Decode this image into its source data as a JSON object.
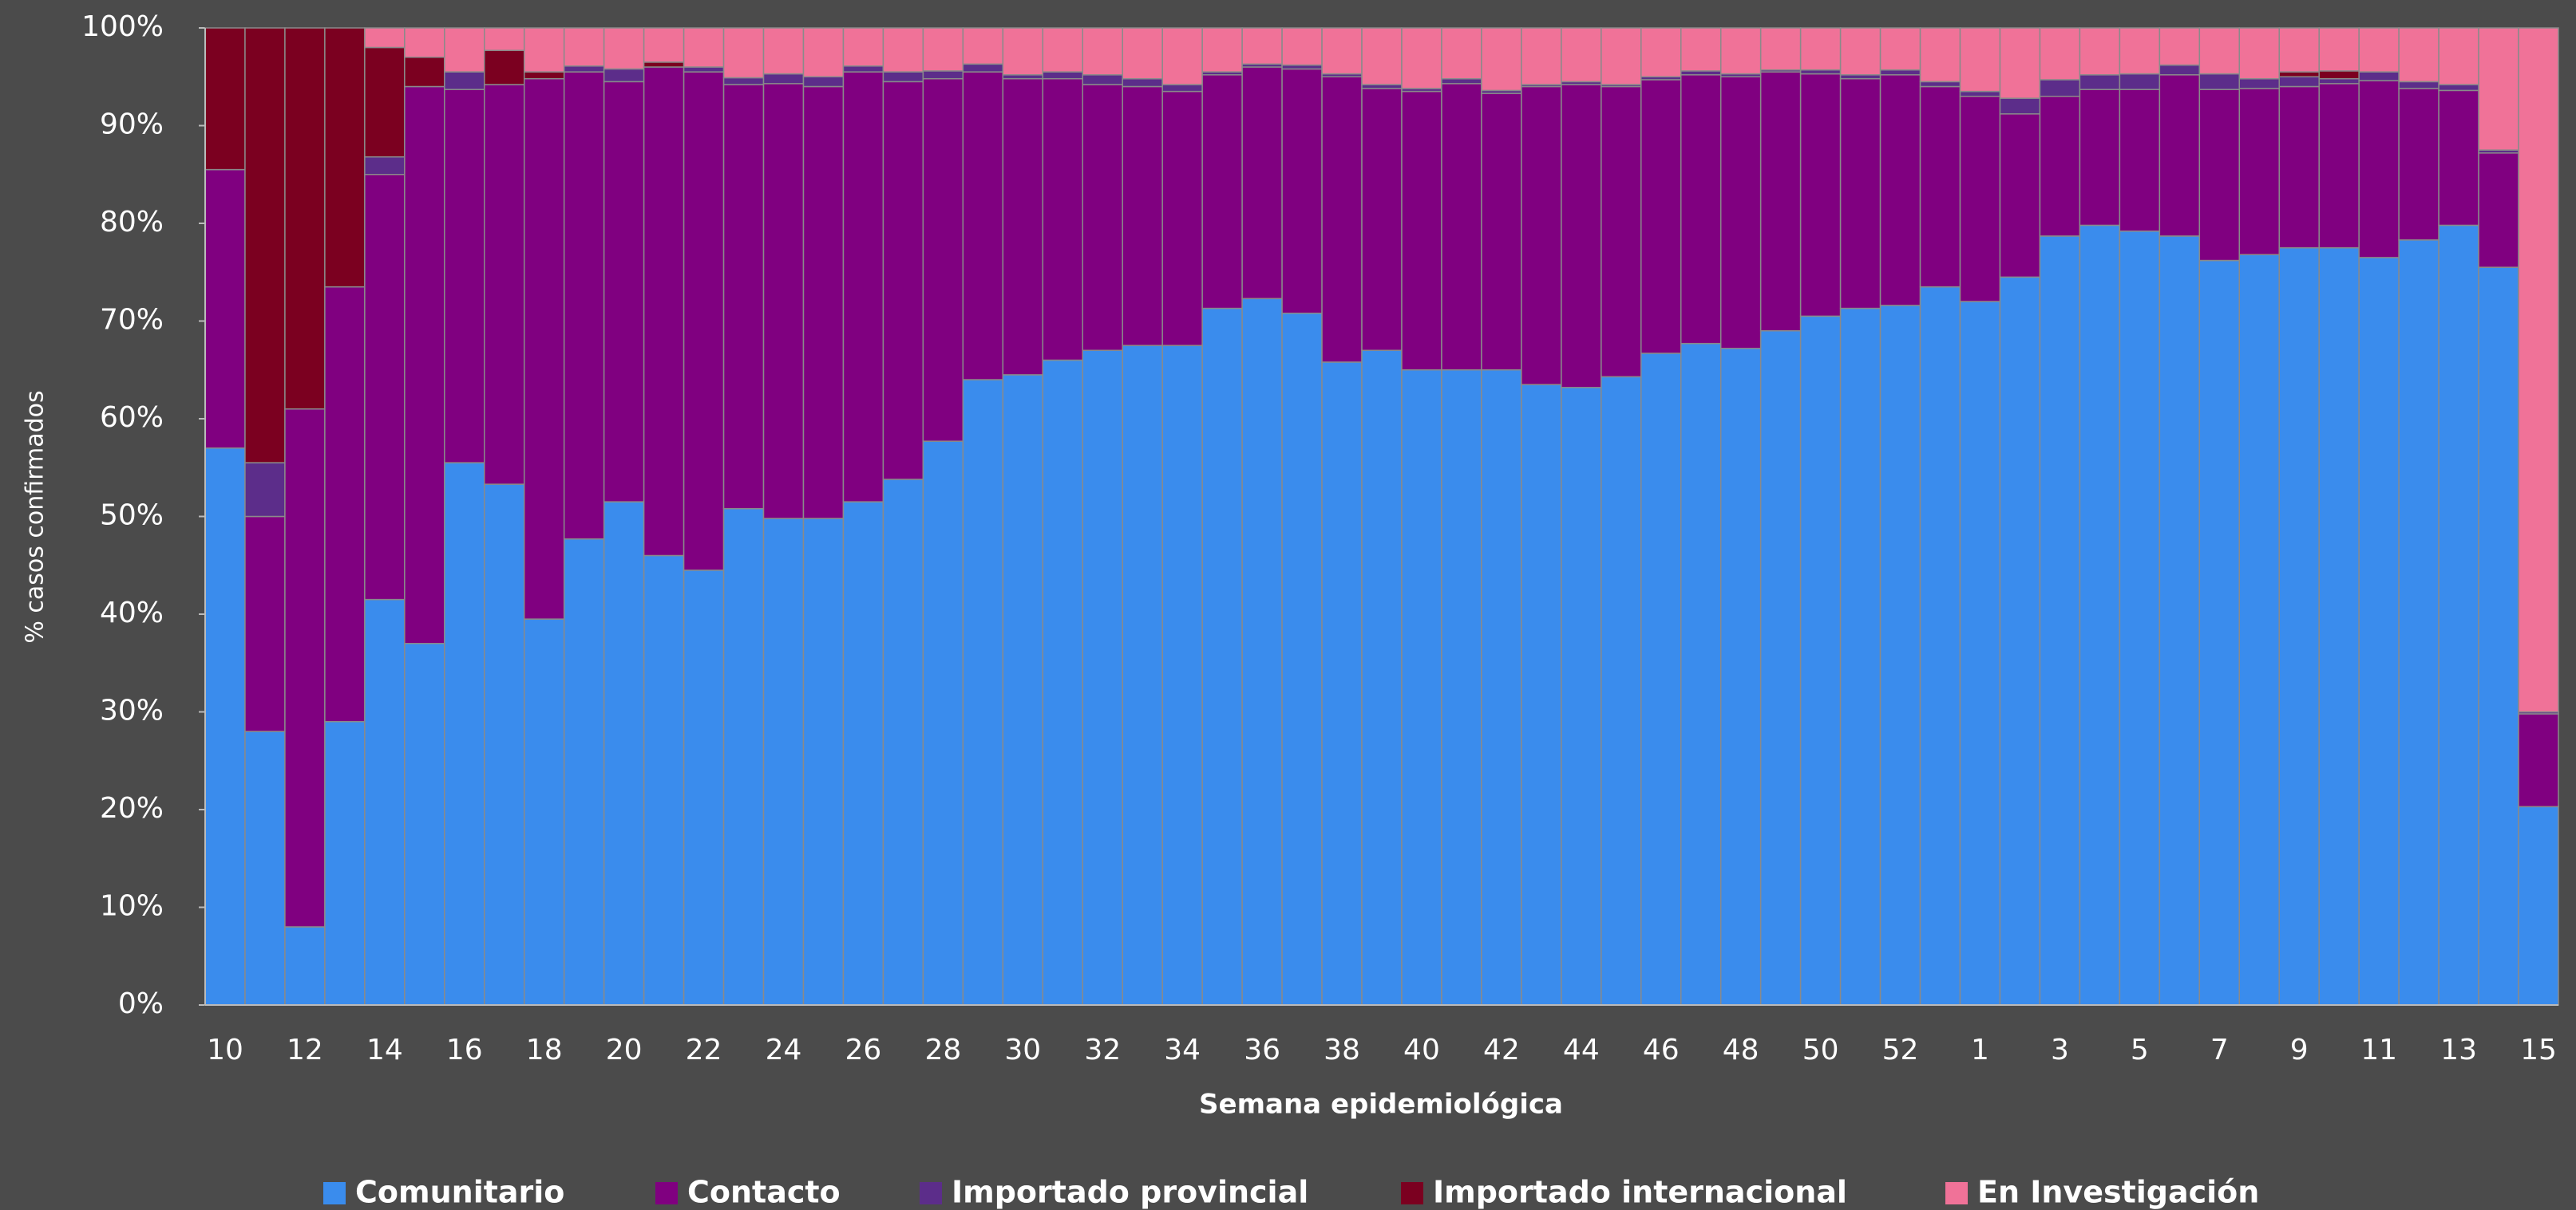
{
  "chart_data": {
    "type": "stacked_bar",
    "y_label": "% casos confirmados",
    "x_label": "Semana epidemiológica",
    "categories": [
      "10",
      null,
      "12",
      null,
      "14",
      null,
      "16",
      null,
      "18",
      null,
      "20",
      null,
      "22",
      null,
      "24",
      null,
      "26",
      null,
      "28",
      null,
      "30",
      null,
      "32",
      null,
      "34",
      null,
      "36",
      null,
      "38",
      null,
      "40",
      null,
      "42",
      null,
      "44",
      null,
      "46",
      null,
      "48",
      null,
      "50",
      null,
      "52",
      null,
      "1",
      null,
      "3",
      null,
      "5",
      null,
      "7",
      null,
      "9",
      null,
      "11",
      null,
      "13",
      null,
      "15"
    ],
    "series": [
      {
        "name": "Comunitario",
        "color": "#3a8ced",
        "values": [
          57,
          28,
          8,
          29,
          41.5,
          37,
          55.5,
          53.3,
          39.5,
          47.7,
          51.5,
          46,
          44.5,
          50.8,
          49.8,
          49.8,
          51.5,
          53.8,
          57.7,
          64,
          64.5,
          66,
          67,
          67.5,
          67.5,
          71.3,
          72.3,
          70.8,
          65.8,
          67,
          65,
          65,
          65,
          63.5,
          63.2,
          64.3,
          66.7,
          67.7,
          67.2,
          69,
          70.5,
          71.3,
          71.6,
          73.5,
          72,
          74.5,
          78.7,
          79.8,
          79.2,
          78.7,
          76.2,
          76.8,
          77.5,
          77.5,
          76.5,
          78.3,
          79.8,
          75.5,
          20.3
        ]
      },
      {
        "name": "Contacto",
        "color": "#800080",
        "values": [
          28.5,
          22,
          53,
          44.5,
          43.5,
          57,
          38.2,
          40.9,
          55.3,
          47.8,
          43,
          50,
          51,
          43.4,
          44.5,
          44.2,
          44,
          40.7,
          37.1,
          31.5,
          30.3,
          28.8,
          27.2,
          26.5,
          26,
          23.9,
          23.7,
          25,
          29.2,
          26.8,
          28.5,
          29.3,
          28.3,
          30.5,
          31,
          29.7,
          28,
          27.5,
          27.8,
          26.5,
          24.8,
          23.5,
          23.6,
          20.5,
          21,
          16.7,
          14.3,
          13.9,
          14.5,
          16.5,
          17.5,
          17,
          16.5,
          16.8,
          18.1,
          15.5,
          13.8,
          11.7,
          9.5
        ]
      },
      {
        "name": "Importado provincial",
        "color": "#5c2d8a",
        "values": [
          0,
          5.5,
          0,
          0,
          1.8,
          0,
          1.8,
          0,
          0,
          0.6,
          1.3,
          0,
          0.5,
          0.7,
          1,
          1,
          0.6,
          1,
          0.8,
          0.8,
          0.4,
          0.7,
          1,
          0.8,
          0.7,
          0.3,
          0.3,
          0.4,
          0.3,
          0.4,
          0.3,
          0.5,
          0.3,
          0.2,
          0.3,
          0.2,
          0.3,
          0.4,
          0.3,
          0.2,
          0.4,
          0.4,
          0.5,
          0.5,
          0.5,
          1.6,
          1.7,
          1.5,
          1.6,
          1,
          1.6,
          1,
          1,
          0.5,
          0.9,
          0.7,
          0.6,
          0.3,
          0.2
        ]
      },
      {
        "name": "Importado internacional",
        "color": "#7b0020",
        "values": [
          14.5,
          44.5,
          39,
          26.5,
          11.2,
          3,
          0,
          3.5,
          0.7,
          0,
          0,
          0.5,
          0,
          0,
          0,
          0,
          0,
          0,
          0,
          0,
          0,
          0,
          0,
          0,
          0,
          0,
          0,
          0,
          0,
          0,
          0,
          0,
          0,
          0,
          0,
          0,
          0,
          0,
          0,
          0,
          0,
          0,
          0,
          0,
          0,
          0,
          0,
          0,
          0,
          0,
          0,
          0,
          0.5,
          0.8,
          0,
          0,
          0,
          0,
          0
        ]
      },
      {
        "name": "En Investigación",
        "color": "#f07298",
        "values": [
          0,
          0,
          0,
          0,
          2,
          3,
          4.5,
          2.3,
          4.5,
          3.9,
          4.2,
          3.5,
          4,
          5.1,
          4.7,
          5,
          3.9,
          4.5,
          4.4,
          3.7,
          4.8,
          4.5,
          4.8,
          5.2,
          5.8,
          4.5,
          3.7,
          3.8,
          4.7,
          5.8,
          6.2,
          5.2,
          6.4,
          5.8,
          5.5,
          5.8,
          5,
          4.4,
          4.7,
          4.3,
          4.3,
          4.8,
          4.3,
          5.5,
          6.5,
          7.2,
          5.3,
          4.8,
          4.7,
          3.8,
          4.7,
          5.2,
          4.5,
          4.4,
          4.5,
          5.5,
          5.8,
          12.5,
          70
        ]
      }
    ],
    "ylim": [
      0,
      100
    ],
    "yticks": [
      {
        "value": 0,
        "label": "0%"
      },
      {
        "value": 10,
        "label": "10%"
      },
      {
        "value": 20,
        "label": "20%"
      },
      {
        "value": 30,
        "label": "30%"
      },
      {
        "value": 40,
        "label": "40%"
      },
      {
        "value": 50,
        "label": "50%"
      },
      {
        "value": 60,
        "label": "60%"
      },
      {
        "value": 70,
        "label": "70%"
      },
      {
        "value": 80,
        "label": "80%"
      },
      {
        "value": 90,
        "label": "90%"
      },
      {
        "value": 100,
        "label": "100%"
      }
    ],
    "legend": "bottom"
  }
}
